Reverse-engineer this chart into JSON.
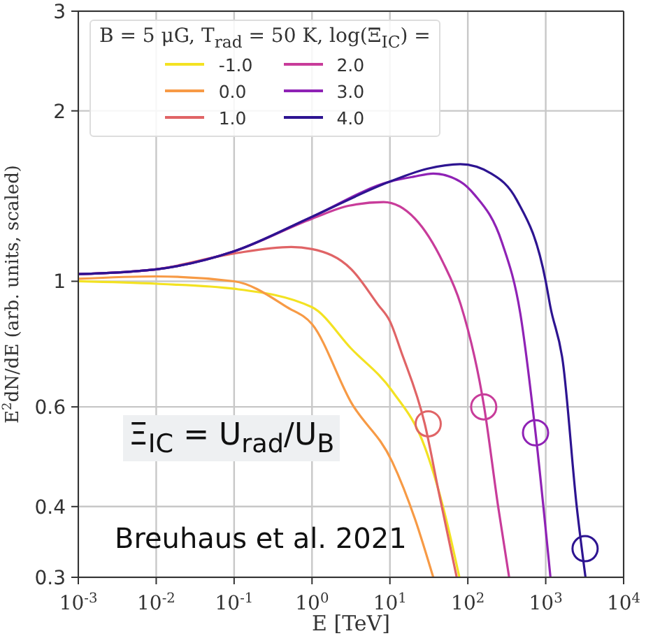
{
  "chart_data": {
    "type": "line",
    "xlabel": "E [TeV]",
    "ylabel": "E$^{2}$dN/dE (arb. units, scaled)",
    "legend_title": "B = 5 μG, T$_{rad}$ = 50 K, log(Ξ$_{IC}$) =",
    "log": "xy",
    "grid": true,
    "legend": "top left",
    "line_style": "solid",
    "marker": "none",
    "xlim": [
      0.001,
      10000
    ],
    "xticks": [
      {
        "value": 0.001,
        "label": "10$^{-3}$"
      },
      {
        "value": 0.01,
        "label": "10$^{-2}$"
      },
      {
        "value": 0.1,
        "label": "10$^{-1}$"
      },
      {
        "value": 1,
        "label": "10$^{0}$"
      },
      {
        "value": 10,
        "label": "10$^{1}$"
      },
      {
        "value": 100,
        "label": "10$^{2}$"
      },
      {
        "value": 1000,
        "label": "10$^{3}$"
      },
      {
        "value": 10000,
        "label": "10$^{4}$"
      }
    ],
    "ylim": [
      0.3,
      3
    ],
    "yticks": [
      0.3,
      0.4,
      0.6,
      1,
      2,
      3
    ],
    "series": [
      {
        "name": "-1.0",
        "color": "#f3e222",
        "x": [
          0.001,
          0.01,
          0.1,
          1,
          3.2,
          10.7,
          28,
          48,
          78
        ],
        "values": [
          1.0,
          0.99,
          0.97,
          0.9,
          0.76,
          0.64,
          0.51,
          0.4,
          0.3
        ]
      },
      {
        "name": "0.0",
        "color": "#f79a45",
        "x": [
          0.001,
          0.01,
          0.1,
          0.48,
          1,
          3.2,
          10.7,
          21,
          36
        ],
        "values": [
          1.01,
          1.02,
          1.0,
          0.9,
          0.84,
          0.61,
          0.48,
          0.38,
          0.3
        ]
      },
      {
        "name": "1.0",
        "color": "#e06466",
        "x": [
          0.001,
          0.01,
          0.1,
          0.54,
          1,
          3.2,
          7,
          10,
          14,
          28,
          43,
          72
        ],
        "values": [
          1.03,
          1.05,
          1.12,
          1.15,
          1.14,
          1.05,
          0.91,
          0.85,
          0.75,
          0.56,
          0.42,
          0.3
        ]
      },
      {
        "name": "2.0",
        "color": "#c83c9a",
        "x": [
          0.001,
          0.01,
          0.1,
          1,
          3,
          8.3,
          21,
          48,
          81,
          162,
          245,
          339
        ],
        "values": [
          1.03,
          1.05,
          1.13,
          1.29,
          1.36,
          1.38,
          1.29,
          1.08,
          0.91,
          0.6,
          0.4,
          0.3
        ]
      },
      {
        "name": "3.0",
        "color": "#8f22b5",
        "x": [
          0.001,
          0.01,
          0.1,
          1,
          10,
          20,
          36,
          80,
          123,
          275,
          470,
          740,
          1150
        ],
        "values": [
          1.03,
          1.05,
          1.13,
          1.3,
          1.5,
          1.53,
          1.55,
          1.5,
          1.42,
          1.17,
          0.88,
          0.54,
          0.3
        ]
      },
      {
        "name": "4.0",
        "color": "#2d1491",
        "x": [
          0.001,
          0.01,
          0.1,
          1,
          10,
          30,
          80,
          200,
          427,
          1000,
          1150,
          1660,
          2500,
          3240
        ],
        "values": [
          1.03,
          1.05,
          1.13,
          1.3,
          1.5,
          1.58,
          1.61,
          1.55,
          1.39,
          1.0,
          0.9,
          0.72,
          0.4,
          0.3
        ]
      },
      {
        "type": "scatter",
        "marker": "circle",
        "x": [
          31,
          160,
          740,
          3200
        ],
        "values": [
          0.56,
          0.6,
          0.54,
          0.337
        ],
        "colors": [
          "#e06466",
          "#c83c9a",
          "#8f22b5",
          "#2d1491"
        ]
      }
    ],
    "annotations": [
      "Ξ$_{IC}$ = U$_{rad}$/U$_{B}$",
      "Breuhaus et al. 2021"
    ]
  }
}
